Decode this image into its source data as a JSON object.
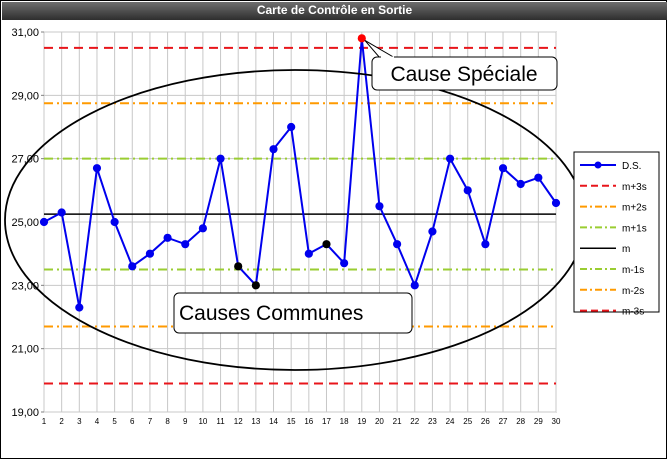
{
  "chart_data": {
    "type": "line",
    "title": "Carte de Contrôle en Sortie",
    "x": [
      1,
      2,
      3,
      4,
      5,
      6,
      7,
      8,
      9,
      10,
      11,
      12,
      13,
      14,
      15,
      16,
      17,
      18,
      19,
      20,
      21,
      22,
      23,
      24,
      25,
      26,
      27,
      28,
      29,
      30
    ],
    "y_ticks": [
      "19,00",
      "21,00",
      "23,00",
      "25,00",
      "27,00",
      "29,00",
      "31,00"
    ],
    "ylim": [
      19,
      31
    ],
    "series": [
      {
        "name": "D.S.",
        "values": [
          25.0,
          25.3,
          22.3,
          26.7,
          25.0,
          23.6,
          24.0,
          24.5,
          24.3,
          24.8,
          27.0,
          23.6,
          23.0,
          27.3,
          28.0,
          24.0,
          24.3,
          23.7,
          30.8,
          25.5,
          24.3,
          23.0,
          24.7,
          27.0,
          26.0,
          24.3,
          26.7,
          26.2,
          26.4,
          25.6
        ],
        "color": "#0000ee"
      }
    ],
    "special_points": {
      "red": [
        19
      ],
      "black": [
        12,
        13,
        17
      ]
    },
    "limits": [
      {
        "name": "m+3s",
        "value": 30.5,
        "color": "#e8151b",
        "style": "dash"
      },
      {
        "name": "m+2s",
        "value": 28.75,
        "color": "#ff9a00",
        "style": "dashdot"
      },
      {
        "name": "m+1s",
        "value": 27.0,
        "color": "#9acd32",
        "style": "dashdot"
      },
      {
        "name": "m",
        "value": 25.25,
        "color": "#000000",
        "style": "solid"
      },
      {
        "name": "m-1s",
        "value": 23.5,
        "color": "#9acd32",
        "style": "dashdot"
      },
      {
        "name": "m-2s",
        "value": 21.7,
        "color": "#ff9a00",
        "style": "dashdot"
      },
      {
        "name": "m-3s",
        "value": 19.9,
        "color": "#e8151b",
        "style": "dash"
      }
    ],
    "annotations": {
      "special": "Cause Spéciale",
      "common": "Causes Communes"
    },
    "legend_position": "right",
    "grid": true
  }
}
